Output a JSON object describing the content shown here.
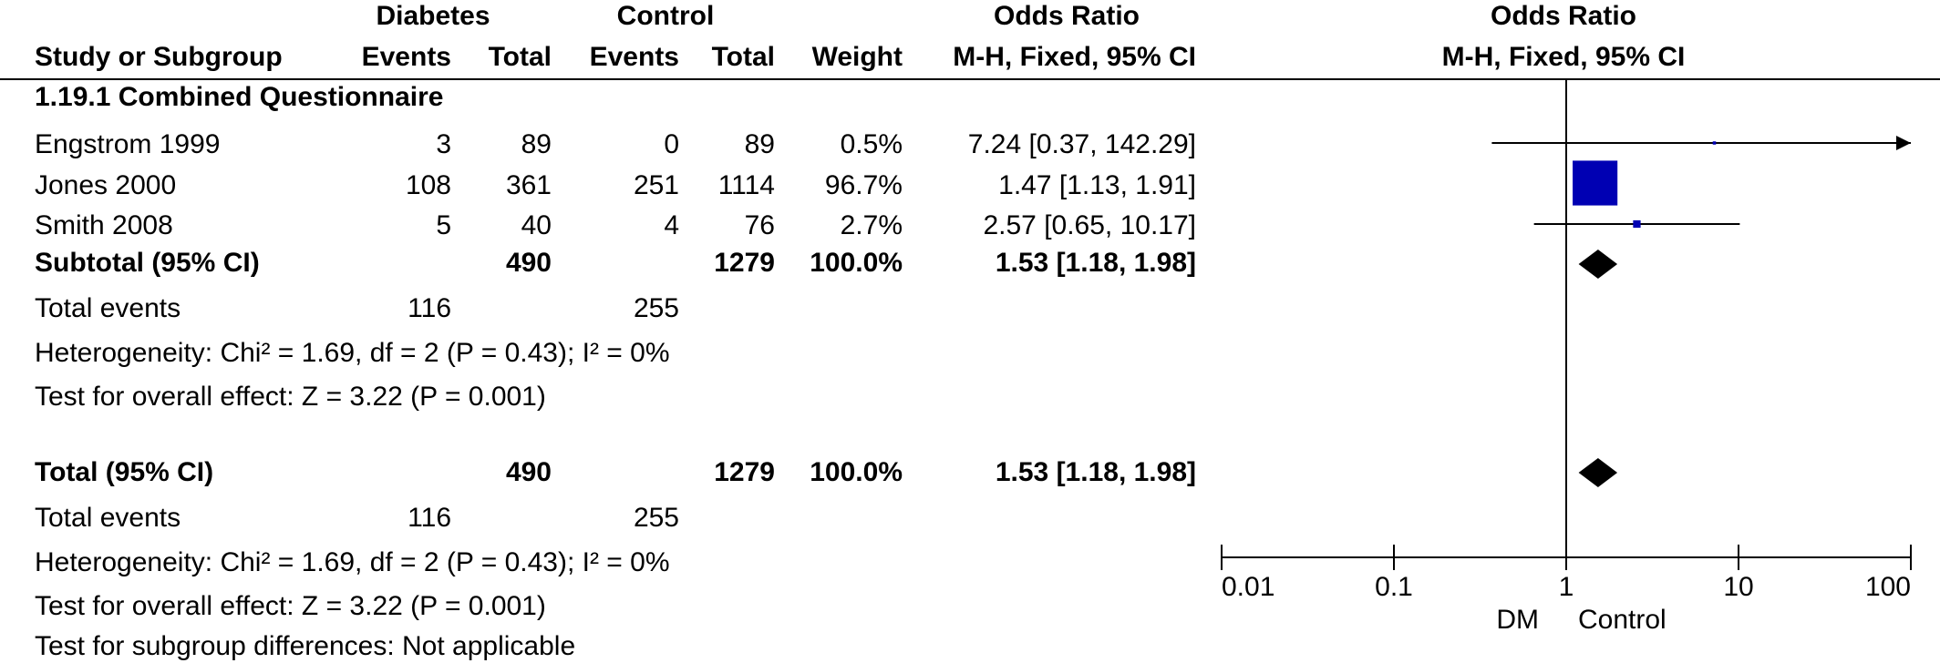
{
  "header": {
    "group1": "Diabetes",
    "group2": "Control",
    "effect_title": "Odds Ratio",
    "plot_title": "Odds Ratio",
    "col_study": "Study or Subgroup",
    "col_events1": "Events",
    "col_total1": "Total",
    "col_events2": "Events",
    "col_total2": "Total",
    "col_weight": "Weight",
    "col_method": "M-H, Fixed, 95% CI",
    "plot_method": "M-H, Fixed, 95% CI"
  },
  "subgroup": {
    "title": "1.19.1 Combined Questionnaire",
    "studies": [
      {
        "name": "Engstrom 1999",
        "events1": "3",
        "total1": "89",
        "events2": "0",
        "total2": "89",
        "weight": "0.5%",
        "ci_text": "7.24 [0.37, 142.29]"
      },
      {
        "name": "Jones 2000",
        "events1": "108",
        "total1": "361",
        "events2": "251",
        "total2": "1114",
        "weight": "96.7%",
        "ci_text": "1.47 [1.13, 1.91]"
      },
      {
        "name": "Smith 2008",
        "events1": "5",
        "total1": "40",
        "events2": "4",
        "total2": "76",
        "weight": "2.7%",
        "ci_text": "2.57 [0.65, 10.17]"
      }
    ],
    "subtotal": {
      "label": "Subtotal (95% CI)",
      "total1": "490",
      "total2": "1279",
      "weight": "100.0%",
      "ci_text": "1.53 [1.18, 1.98]"
    },
    "total_events": {
      "label": "Total events",
      "events1": "116",
      "events2": "255"
    },
    "heterogeneity": "Heterogeneity: Chi² = 1.69, df = 2 (P = 0.43); I² = 0%",
    "overall_effect": "Test for overall effect: Z = 3.22 (P = 0.001)"
  },
  "total": {
    "label": "Total (95% CI)",
    "total1": "490",
    "total2": "1279",
    "weight": "100.0%",
    "ci_text": "1.53 [1.18, 1.98]",
    "total_events": {
      "label": "Total events",
      "events1": "116",
      "events2": "255"
    },
    "heterogeneity": "Heterogeneity: Chi² = 1.69, df = 2 (P = 0.43); I² = 0%",
    "overall_effect": "Test for overall effect: Z = 3.22 (P = 0.001)",
    "subgroup_diff": "Test for subgroup differences: Not applicable"
  },
  "chart_data": {
    "type": "forest",
    "scale": "log",
    "xlim": [
      0.01,
      100
    ],
    "tick_labels": [
      "0.01",
      "0.1",
      "1",
      "10",
      "100"
    ],
    "tick_values": [
      0.01,
      0.1,
      1,
      10,
      100
    ],
    "favours_left": "DM",
    "favours_right": "Control",
    "studies": [
      {
        "name": "Engstrom 1999",
        "or": 7.24,
        "lo": 0.37,
        "hi": 142.29,
        "weight": 0.5,
        "arrow_right": true
      },
      {
        "name": "Jones 2000",
        "or": 1.47,
        "lo": 1.13,
        "hi": 1.91,
        "weight": 96.7,
        "arrow_right": false
      },
      {
        "name": "Smith 2008",
        "or": 2.57,
        "lo": 0.65,
        "hi": 10.17,
        "weight": 2.7,
        "arrow_right": false
      }
    ],
    "summaries": [
      {
        "name": "Subtotal (95% CI)",
        "or": 1.53,
        "lo": 1.18,
        "hi": 1.98
      },
      {
        "name": "Total (95% CI)",
        "or": 1.53,
        "lo": 1.18,
        "hi": 1.98
      }
    ],
    "colors": {
      "study_marker": "#0000b3",
      "diamond": "#000000",
      "line": "#000000"
    }
  }
}
